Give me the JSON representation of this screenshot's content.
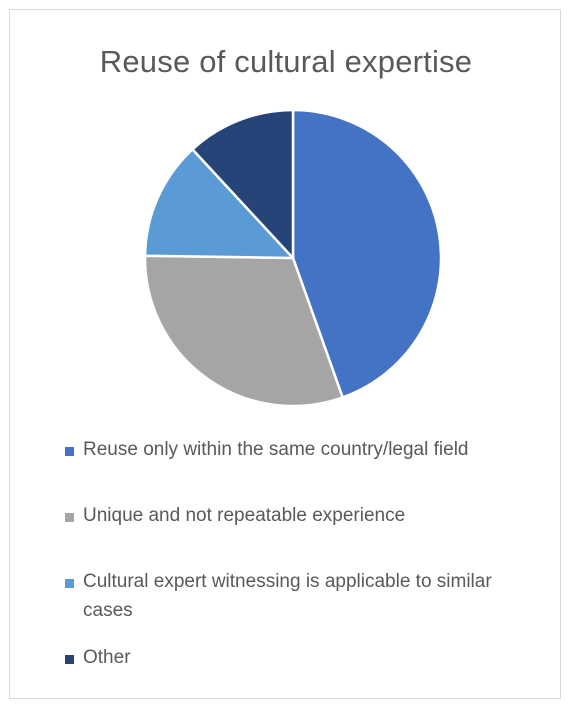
{
  "chart_data": {
    "type": "pie",
    "title": "Reuse of cultural expertise",
    "legend_position": "bottom",
    "slices": [
      {
        "label": "Reuse only within the same country/legal field",
        "value": 45,
        "color": "#4472c4"
      },
      {
        "label": "Unique and not repeatable experience",
        "value": 31,
        "color": "#a5a5a5"
      },
      {
        "label": "Cultural expert witnessing is applicable to similar cases",
        "value": 13,
        "color": "#5b9bd5"
      },
      {
        "label": "Other",
        "value": 12,
        "color": "#264478"
      }
    ]
  }
}
